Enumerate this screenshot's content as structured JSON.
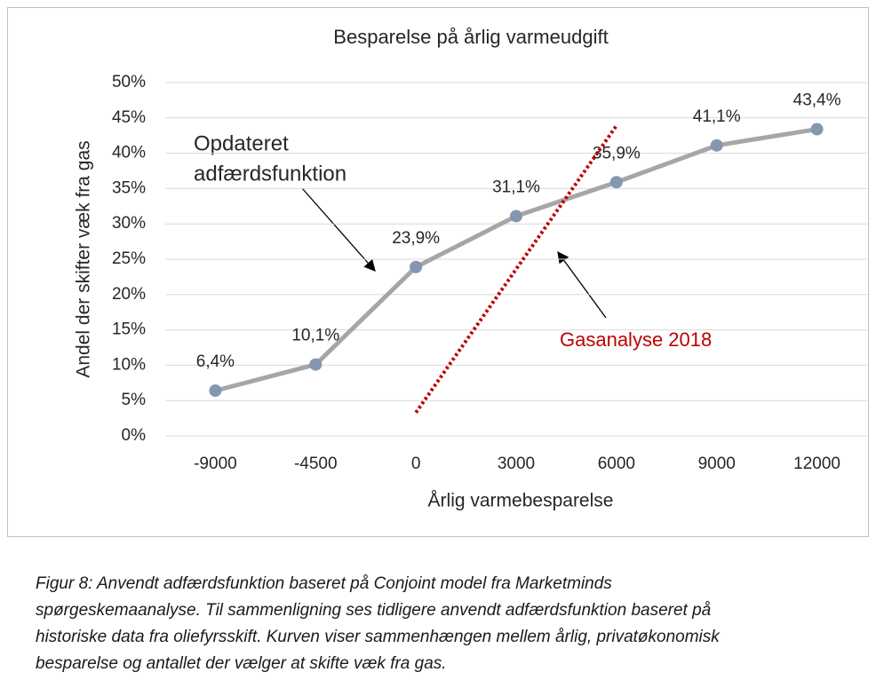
{
  "chart_data": {
    "type": "line",
    "title": "Besparelse på årlig varmeudgift",
    "x_label": "Årlig varmebesparelse",
    "y_label": "Andel der skifter væk fra gas",
    "categories": [
      "-9000",
      "-4500",
      "0",
      "3000",
      "6000",
      "9000",
      "12000"
    ],
    "series": [
      {
        "name": "Opdateret adfærdsfunktion",
        "color": "#a6a6a6",
        "marker_color": "#8497b0",
        "values": [
          6.4,
          10.1,
          23.9,
          31.1,
          35.9,
          41.1,
          43.4
        ],
        "value_labels": [
          "6,4%",
          "10,1%",
          "23,9%",
          "31,1%",
          "35,9%",
          "41,1%",
          "43,4%"
        ]
      },
      {
        "name": "Gasanalyse 2018",
        "color": "#c00000",
        "values": [
          null,
          null,
          3.3,
          23.6,
          43.9,
          null,
          null
        ]
      }
    ],
    "ylim": [
      0,
      50
    ],
    "yticks": [
      {
        "value": 0,
        "label": "0%"
      },
      {
        "value": 5,
        "label": "5%"
      },
      {
        "value": 10,
        "label": "10%"
      },
      {
        "value": 15,
        "label": "15%"
      },
      {
        "value": 20,
        "label": "20%"
      },
      {
        "value": 25,
        "label": "25%"
      },
      {
        "value": 30,
        "label": "30%"
      },
      {
        "value": 35,
        "label": "35%"
      },
      {
        "value": 40,
        "label": "40%"
      },
      {
        "value": 45,
        "label": "45%"
      },
      {
        "value": 50,
        "label": "50%"
      }
    ],
    "grid": true,
    "annotations": [
      "Opdateret",
      "adfærdsfunktion",
      "Gasanalyse 2018"
    ]
  },
  "caption": [
    "Figur 8: Anvendt adfærdsfunktion baseret på Conjoint model fra Marketminds",
    "spørgeskemaanalyse. Til sammenligning ses tidligere anvendt adfærdsfunktion baseret på",
    "historiske data fra oliefyrsskift. Kurven viser sammenhængen mellem årlig, privatøkonomisk",
    "besparelse og antallet der vælger at skifte væk fra gas."
  ]
}
